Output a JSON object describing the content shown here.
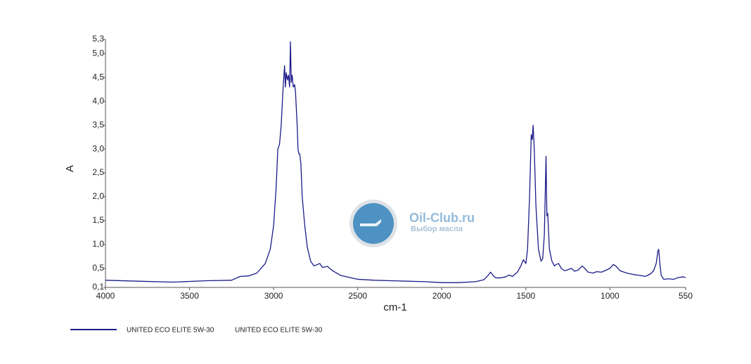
{
  "chart_data": {
    "type": "line",
    "x_label": "cm-1",
    "y_label": "A",
    "xlim": [
      4000,
      550
    ],
    "ylim": [
      0.1,
      5.3
    ],
    "xticks": [
      4000,
      3500,
      3000,
      2500,
      2000,
      1500,
      1000,
      550
    ],
    "yticks": [
      {
        "value": 0.1,
        "label": "0,1"
      },
      {
        "value": 0.5,
        "label": "0,5"
      },
      {
        "value": 1.0,
        "label": "1,0"
      },
      {
        "value": 1.5,
        "label": "1,5"
      },
      {
        "value": 2.0,
        "label": "2,0"
      },
      {
        "value": 2.5,
        "label": "2,5"
      },
      {
        "value": 3.0,
        "label": "3,0"
      },
      {
        "value": 3.5,
        "label": "3,5"
      },
      {
        "value": 4.0,
        "label": "4,0"
      },
      {
        "value": 4.5,
        "label": "4,5"
      },
      {
        "value": 5.0,
        "label": "5,0"
      },
      {
        "value": 5.3,
        "label": "5,3"
      }
    ],
    "x": [
      4000,
      3800,
      3600,
      3400,
      3250,
      3200,
      3150,
      3100,
      3050,
      3020,
      3000,
      2985,
      2975,
      2965,
      2955,
      2945,
      2935,
      2930,
      2925,
      2918,
      2912,
      2905,
      2900,
      2895,
      2890,
      2883,
      2875,
      2870,
      2860,
      2855,
      2850,
      2845,
      2838,
      2830,
      2815,
      2800,
      2780,
      2760,
      2740,
      2725,
      2710,
      2680,
      2650,
      2600,
      2500,
      2400,
      2300,
      2200,
      2100,
      2000,
      1900,
      1800,
      1750,
      1725,
      1710,
      1695,
      1680,
      1650,
      1620,
      1600,
      1580,
      1550,
      1530,
      1515,
      1500,
      1490,
      1478,
      1468,
      1462,
      1457,
      1450,
      1440,
      1425,
      1410,
      1400,
      1390,
      1380,
      1375,
      1370,
      1360,
      1345,
      1330,
      1320,
      1305,
      1290,
      1270,
      1250,
      1230,
      1210,
      1190,
      1165,
      1150,
      1130,
      1100,
      1080,
      1050,
      1030,
      1000,
      980,
      965,
      940,
      900,
      860,
      820,
      790,
      760,
      740,
      725,
      715,
      710,
      703,
      695,
      680,
      650,
      620,
      600,
      570,
      550
    ],
    "series": [
      {
        "name": "UNITED ECO ELITE 5W-30",
        "sample": "UNITED ECO ELITE 5W-30",
        "color": "#1c1c8a",
        "values": [
          0.25,
          0.23,
          0.21,
          0.24,
          0.25,
          0.33,
          0.34,
          0.4,
          0.6,
          0.9,
          1.4,
          2.2,
          3.0,
          3.1,
          3.5,
          4.2,
          4.75,
          4.3,
          4.6,
          4.45,
          4.55,
          4.3,
          5.25,
          4.4,
          4.55,
          4.3,
          4.35,
          4.2,
          3.5,
          3.0,
          2.9,
          2.9,
          2.7,
          2.0,
          1.4,
          0.95,
          0.65,
          0.55,
          0.58,
          0.6,
          0.52,
          0.54,
          0.45,
          0.35,
          0.27,
          0.25,
          0.24,
          0.23,
          0.22,
          0.2,
          0.2,
          0.22,
          0.26,
          0.35,
          0.42,
          0.35,
          0.3,
          0.3,
          0.32,
          0.36,
          0.33,
          0.42,
          0.55,
          0.68,
          0.6,
          0.9,
          2.0,
          3.3,
          3.2,
          3.5,
          3.0,
          1.8,
          0.9,
          0.65,
          0.7,
          1.2,
          2.85,
          1.6,
          1.65,
          0.9,
          0.65,
          0.55,
          0.58,
          0.6,
          0.5,
          0.45,
          0.47,
          0.5,
          0.44,
          0.46,
          0.55,
          0.5,
          0.42,
          0.4,
          0.43,
          0.42,
          0.45,
          0.5,
          0.58,
          0.55,
          0.45,
          0.4,
          0.37,
          0.35,
          0.33,
          0.38,
          0.45,
          0.6,
          0.85,
          0.9,
          0.6,
          0.35,
          0.27,
          0.28,
          0.27,
          0.3,
          0.32,
          0.31
        ]
      }
    ]
  },
  "watermark": {
    "title": "Oil-Club.ru",
    "subtitle": "Выбор масла"
  }
}
